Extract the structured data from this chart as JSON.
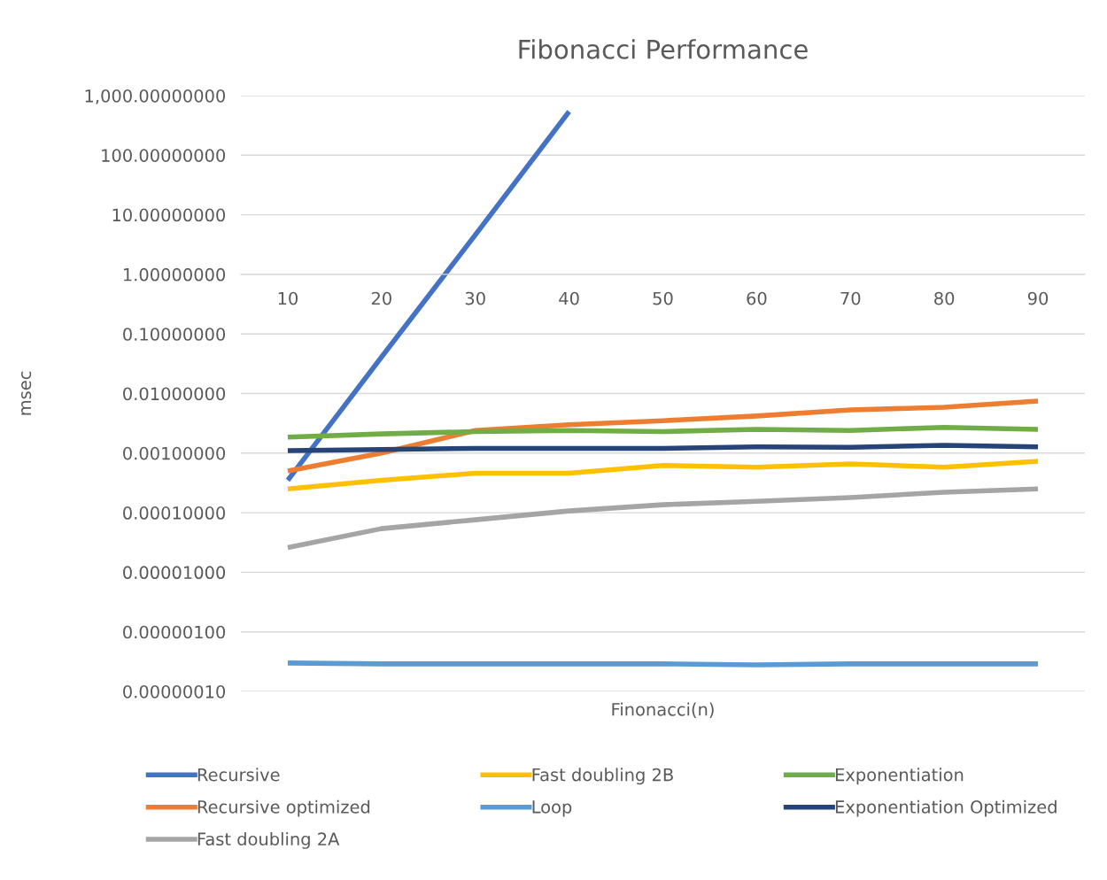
{
  "chart_data": {
    "type": "line",
    "title": "Fibonacci Performance",
    "xlabel": "Finonacci(n)",
    "ylabel": "msec",
    "categories": [
      "10",
      "20",
      "30",
      "40",
      "50",
      "60",
      "70",
      "80",
      "90"
    ],
    "series": [
      {
        "name": "Recursive",
        "color": "#4472c4",
        "values": [
          0.00035,
          0.041,
          4.6,
          540,
          null,
          null,
          null,
          null,
          null
        ]
      },
      {
        "name": "Recursive optimized",
        "color": "#ed7d31",
        "values": [
          0.0005,
          0.001,
          0.0024,
          0.003,
          0.0035,
          0.0042,
          0.0053,
          0.0059,
          0.0075
        ]
      },
      {
        "name": "Fast doubling 2A",
        "color": "#a5a5a5",
        "values": [
          2.6e-05,
          5.4e-05,
          7.6e-05,
          0.000107,
          0.000136,
          0.000155,
          0.00018,
          0.00022,
          0.00025
        ]
      },
      {
        "name": "Fast doubling 2B",
        "color": "#ffc000",
        "values": [
          0.00025,
          0.00035,
          0.00046,
          0.00046,
          0.00062,
          0.00058,
          0.00066,
          0.00058,
          0.00073
        ]
      },
      {
        "name": "Loop",
        "color": "#5b9bd5",
        "values": [
          3e-07,
          2.9e-07,
          2.9e-07,
          2.9e-07,
          2.9e-07,
          2.8e-07,
          2.9e-07,
          2.9e-07,
          2.9e-07
        ]
      },
      {
        "name": "Exponentiation",
        "color": "#70ad47",
        "values": [
          0.00185,
          0.0021,
          0.0023,
          0.0024,
          0.0023,
          0.0025,
          0.0024,
          0.0027,
          0.0025
        ]
      },
      {
        "name": "Exponentiation Optimized",
        "color": "#264478",
        "values": [
          0.0011,
          0.00115,
          0.0012,
          0.0012,
          0.0012,
          0.00127,
          0.00125,
          0.00135,
          0.00127
        ]
      }
    ],
    "log": "y",
    "ylim": [
      1e-07,
      1000
    ],
    "yticks": [
      {
        "value": 1e-07,
        "label": "0.00000010"
      },
      {
        "value": 1e-06,
        "label": "0.00000100"
      },
      {
        "value": 1e-05,
        "label": "0.00001000"
      },
      {
        "value": 0.0001,
        "label": "0.00010000"
      },
      {
        "value": 0.001,
        "label": "0.00100000"
      },
      {
        "value": 0.01,
        "label": "0.01000000"
      },
      {
        "value": 0.1,
        "label": "0.10000000"
      },
      {
        "value": 1,
        "label": "1.00000000"
      },
      {
        "value": 10,
        "label": "10.00000000"
      },
      {
        "value": 100,
        "label": "100.00000000"
      },
      {
        "value": 1000,
        "label": "1,000.00000000"
      }
    ],
    "grid": "y",
    "legend": "bottom",
    "line_style": "solid",
    "marker": "none"
  }
}
